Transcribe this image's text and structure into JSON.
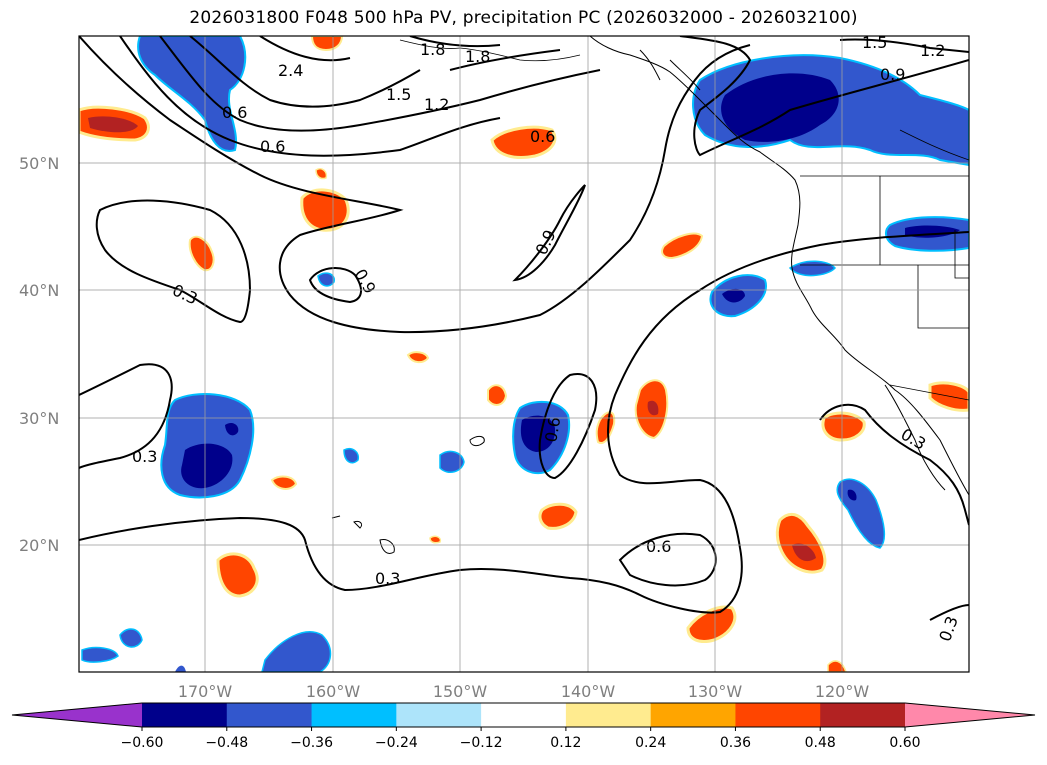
{
  "title": "2026031800 F048 500 hPa PV, precipitation PC (2026032000 - 2026032100)",
  "lat_labels": [
    "50°N",
    "40°N",
    "30°N",
    "20°N"
  ],
  "lon_labels": [
    "170°W",
    "160°W",
    "150°W",
    "140°W",
    "130°W",
    "120°W"
  ],
  "contour_labels": [
    {
      "text": "2.4"
    },
    {
      "text": "1.8"
    },
    {
      "text": "1.8"
    },
    {
      "text": "1.5"
    },
    {
      "text": "1.2"
    },
    {
      "text": "0.6"
    },
    {
      "text": "0.6"
    },
    {
      "text": "0.6"
    },
    {
      "text": "0.9"
    },
    {
      "text": "0.9"
    },
    {
      "text": "0.3"
    },
    {
      "text": "0.3"
    },
    {
      "text": "0.3"
    },
    {
      "text": "0.6"
    },
    {
      "text": "0.9"
    },
    {
      "text": "1.5"
    },
    {
      "text": "1.2"
    },
    {
      "text": "0.3"
    },
    {
      "text": "0.3"
    }
  ],
  "colorbar": {
    "ticks": [
      "−0.60",
      "−0.48",
      "−0.36",
      "−0.24",
      "−0.12",
      "0.12",
      "0.24",
      "0.36",
      "0.48",
      "0.60"
    ],
    "colors": [
      "#9932cc",
      "#00008b",
      "#3257cd",
      "#00bfff",
      "#ade4fa",
      "#ffffff",
      "#ffeb8f",
      "#ffa500",
      "#ff4500",
      "#b22222",
      "#ff88aa"
    ]
  }
}
